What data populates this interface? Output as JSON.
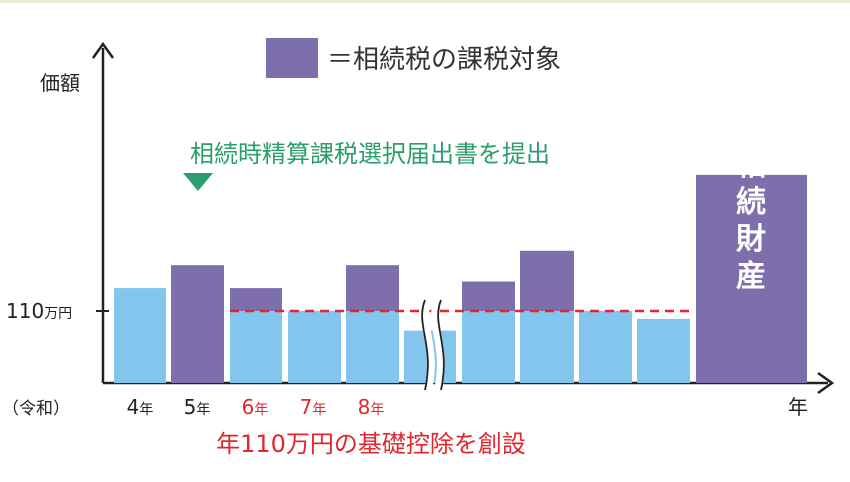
{
  "chart_data": {
    "type": "bar",
    "legend_label": "＝相続税の課税対象",
    "ylabel": "価額",
    "xlabel": "年",
    "y_tick": {
      "number": "110",
      "unit": "万円",
      "value": 110
    },
    "era_label": "（令和）",
    "x_labels": [
      {
        "num": "4",
        "unit": "年"
      },
      {
        "num": "5",
        "unit": "年"
      },
      {
        "num": "6",
        "unit": "年"
      },
      {
        "num": "7",
        "unit": "年"
      },
      {
        "num": "8",
        "unit": "年"
      }
    ],
    "annotation_top": "相続時精算課税選択届出書を提出",
    "annotation_bottom": "年110万円の基礎控除を創設",
    "final_bar_label": [
      "相",
      "続",
      "財",
      "産"
    ],
    "ylim": [
      0,
      270
    ],
    "bars": [
      {
        "base": 145,
        "taxable": 0
      },
      {
        "base": 0,
        "taxable": 180
      },
      {
        "base": 110,
        "taxable": 35
      },
      {
        "base": 110,
        "taxable": 0
      },
      {
        "base": 110,
        "taxable": 70
      },
      {
        "base": 80,
        "taxable": 0
      },
      {
        "base": 110,
        "taxable": 45
      },
      {
        "base": 110,
        "taxable": 92
      },
      {
        "base": 110,
        "taxable": 0
      },
      {
        "base": 98,
        "taxable": 0
      },
      {
        "base": 0,
        "taxable": 318
      }
    ],
    "colors": {
      "base": "#83c5ec",
      "taxable": "#7c6fab",
      "green": "#2a9e6e",
      "red": "#e3262d",
      "axis": "#222222"
    }
  }
}
